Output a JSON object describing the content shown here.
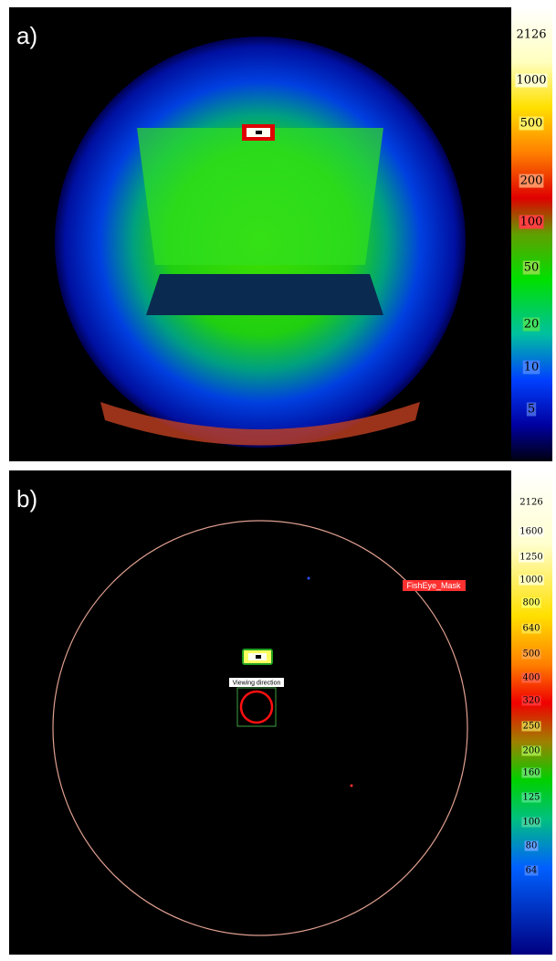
{
  "panels": [
    {
      "label": "a)",
      "scale": [
        2126,
        1000,
        500,
        200,
        100,
        50,
        20,
        10,
        5
      ]
    },
    {
      "label": "b)",
      "scale": [
        2126,
        1600,
        1250,
        1000,
        800,
        640,
        500,
        400,
        320,
        250,
        200,
        160,
        125,
        100,
        80,
        64
      ],
      "annotations": {
        "mask": "FishEye_Mask",
        "view": "Viewing direction"
      }
    }
  ]
}
